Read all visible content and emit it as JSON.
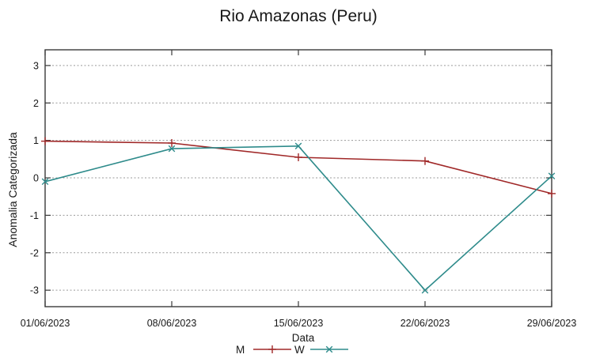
{
  "page": {
    "background": "#ffffff"
  },
  "chart_data": {
    "type": "line",
    "title": "Rio Amazonas (Peru)",
    "xlabel": "Data",
    "ylabel": "Anomalia Categorizada",
    "categories": [
      "01/06/2023",
      "08/06/2023",
      "15/06/2023",
      "22/06/2023",
      "29/06/2023"
    ],
    "series": [
      {
        "name": "M",
        "color": "#a02828",
        "marker": "plus",
        "values": [
          0.98,
          0.93,
          0.55,
          0.45,
          -0.42
        ]
      },
      {
        "name": "W",
        "color": "#2e8b8b",
        "marker": "times",
        "values": [
          -0.1,
          0.78,
          0.85,
          -3.0,
          0.05
        ]
      }
    ],
    "yticks": [
      -3,
      -2,
      -1,
      0,
      1,
      2,
      3
    ],
    "ylim": [
      -3.44,
      3.42
    ],
    "grid": true,
    "gridline_style": "dotted",
    "legend_position": "bottom-center",
    "colors": {
      "axis": "#3a3a3a",
      "grid": "#9a9a9a",
      "text": "#181818",
      "background": "#ffffff"
    }
  }
}
